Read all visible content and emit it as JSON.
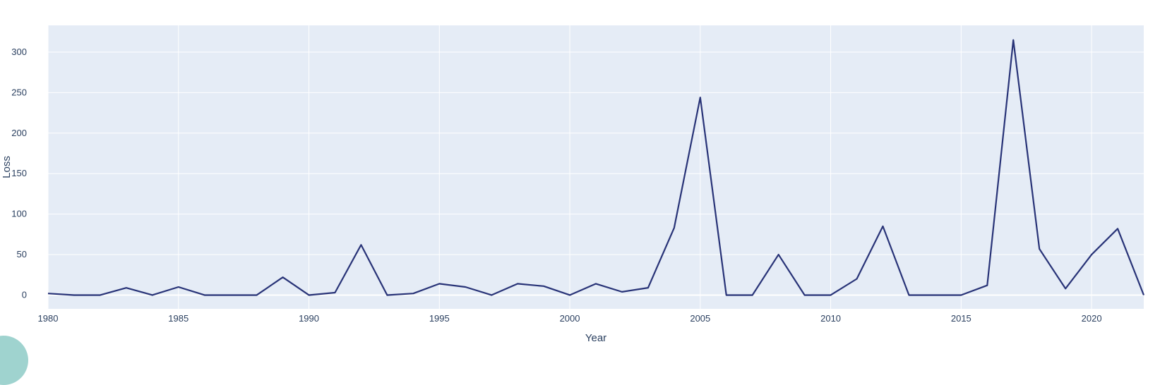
{
  "chart_data": {
    "type": "line",
    "title": "",
    "xlabel": "Year",
    "ylabel": "Loss",
    "xlim": [
      1980,
      2022
    ],
    "ylim": [
      -17,
      333
    ],
    "x_ticks": [
      "1980",
      "1985",
      "1990",
      "1995",
      "2000",
      "2005",
      "2010",
      "2015",
      "2020"
    ],
    "y_ticks": [
      "0",
      "50",
      "100",
      "150",
      "200",
      "250",
      "300"
    ],
    "grid": true,
    "colors": {
      "line": "#283377",
      "plot_bg": "#e5ecf6",
      "grid": "#ffffff",
      "text": "#2a3f5f"
    },
    "series": [
      {
        "x": [
          1980,
          1981,
          1982,
          1983,
          1984,
          1985,
          1986,
          1987,
          1988,
          1989,
          1990,
          1991,
          1992,
          1993,
          1994,
          1995,
          1996,
          1997,
          1998,
          1999,
          2000,
          2001,
          2002,
          2003,
          2004,
          2005,
          2006,
          2007,
          2008,
          2009,
          2010,
          2011,
          2012,
          2013,
          2014,
          2015,
          2016,
          2017,
          2018,
          2019,
          2020,
          2021,
          2022
        ],
        "y": [
          2,
          0,
          0,
          9,
          0,
          10,
          0,
          0,
          0,
          22,
          0,
          3,
          62,
          0,
          2,
          14,
          10,
          0,
          14,
          11,
          0,
          14,
          4,
          9,
          83,
          244,
          0,
          0,
          50,
          0,
          0,
          20,
          85,
          0,
          0,
          0,
          12,
          315,
          57,
          8,
          50,
          82,
          0
        ]
      }
    ]
  }
}
